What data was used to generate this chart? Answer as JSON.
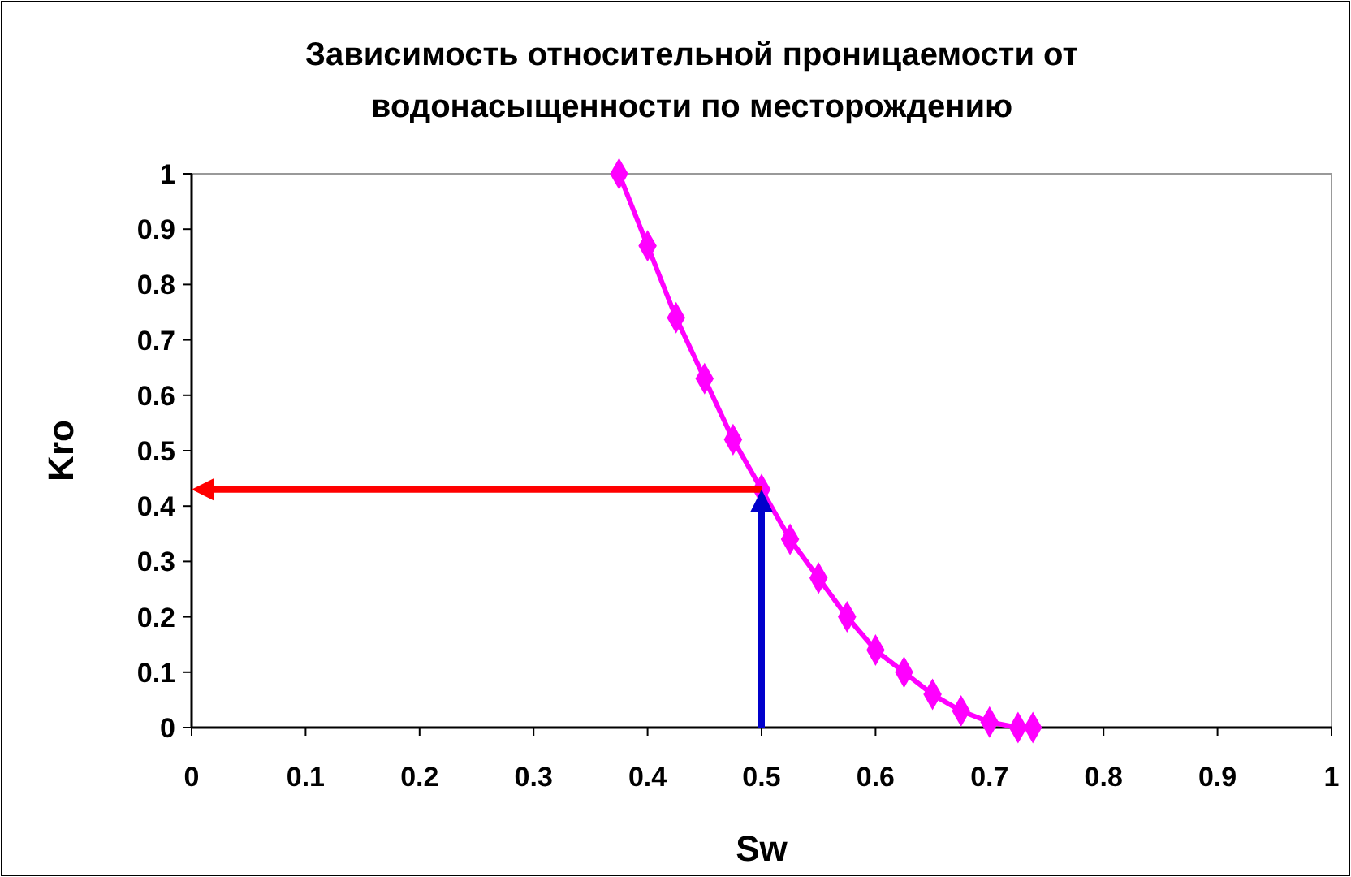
{
  "chart_data": {
    "type": "line",
    "title": "Зависимость относительной проницаемости от водонасыщенности по месторождению",
    "xlabel": "Sw",
    "ylabel": "Kro",
    "xlim": [
      0,
      1
    ],
    "xticks": [
      0,
      0.1,
      0.2,
      0.3,
      0.4,
      0.5,
      0.6,
      0.7,
      0.8,
      0.9,
      1
    ],
    "ylim": [
      0,
      1
    ],
    "yticks": [
      0,
      0.1,
      0.2,
      0.3,
      0.4,
      0.5,
      0.6,
      0.7,
      0.8,
      0.9,
      1
    ],
    "marker": "diamond",
    "grid": false,
    "series": [
      {
        "color": "#ff00ff",
        "x": [
          0.375,
          0.4,
          0.425,
          0.45,
          0.475,
          0.5,
          0.525,
          0.55,
          0.575,
          0.6,
          0.625,
          0.65,
          0.675,
          0.7,
          0.725,
          0.738
        ],
        "values": [
          1,
          0.87,
          0.74,
          0.63,
          0.52,
          0.43,
          0.34,
          0.27,
          0.2,
          0.14,
          0.1,
          0.06,
          0.03,
          0.01,
          0,
          0
        ]
      }
    ],
    "ref_lines": [
      {
        "axis": "y",
        "value": 0.43,
        "color": "#ff0000"
      },
      {
        "axis": "x",
        "value": 0.5,
        "color": "#0000cc"
      }
    ]
  }
}
